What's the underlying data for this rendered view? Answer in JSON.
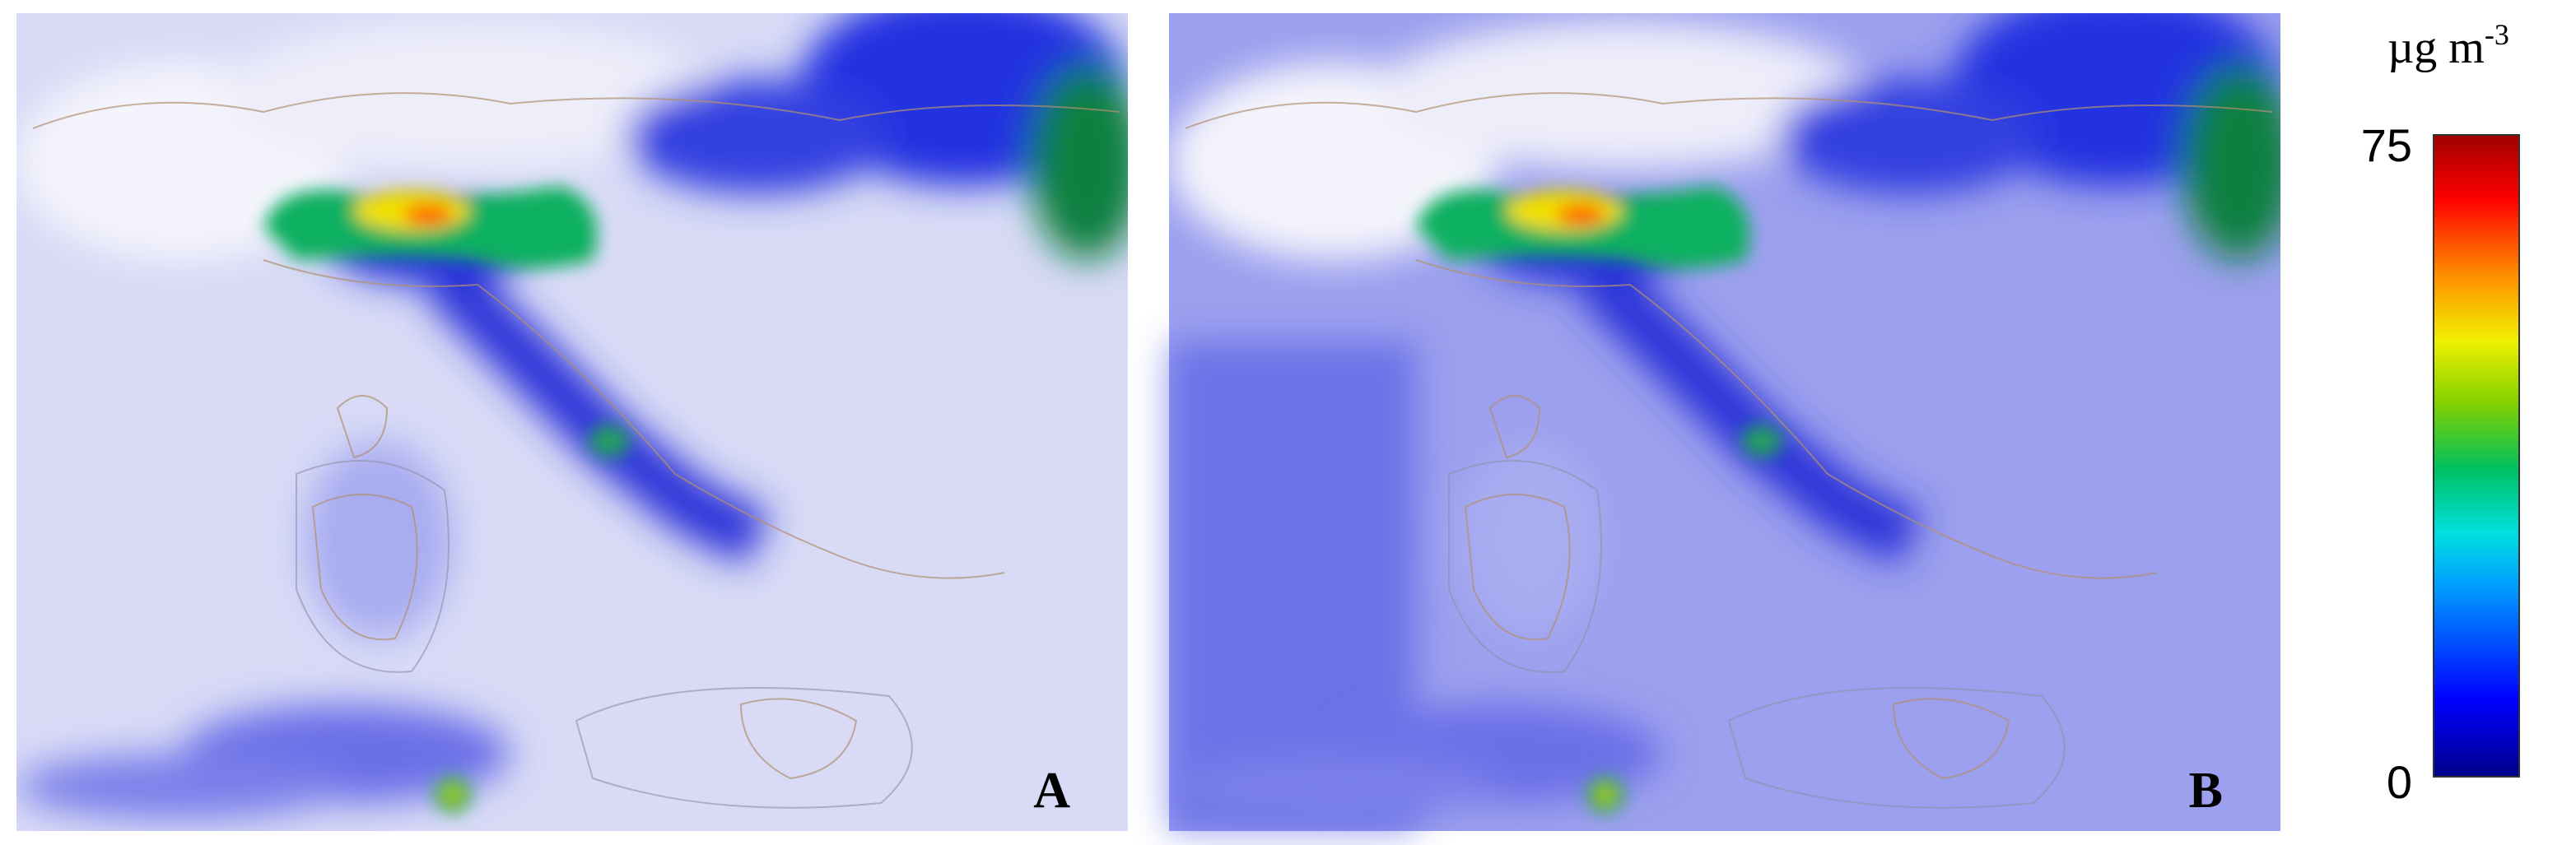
{
  "panels": [
    {
      "label": "A"
    },
    {
      "label": "B"
    }
  ],
  "colorbar": {
    "unit": "µg m",
    "unit_exponent": "-3",
    "max_label": "75",
    "min_label": "0"
  }
}
